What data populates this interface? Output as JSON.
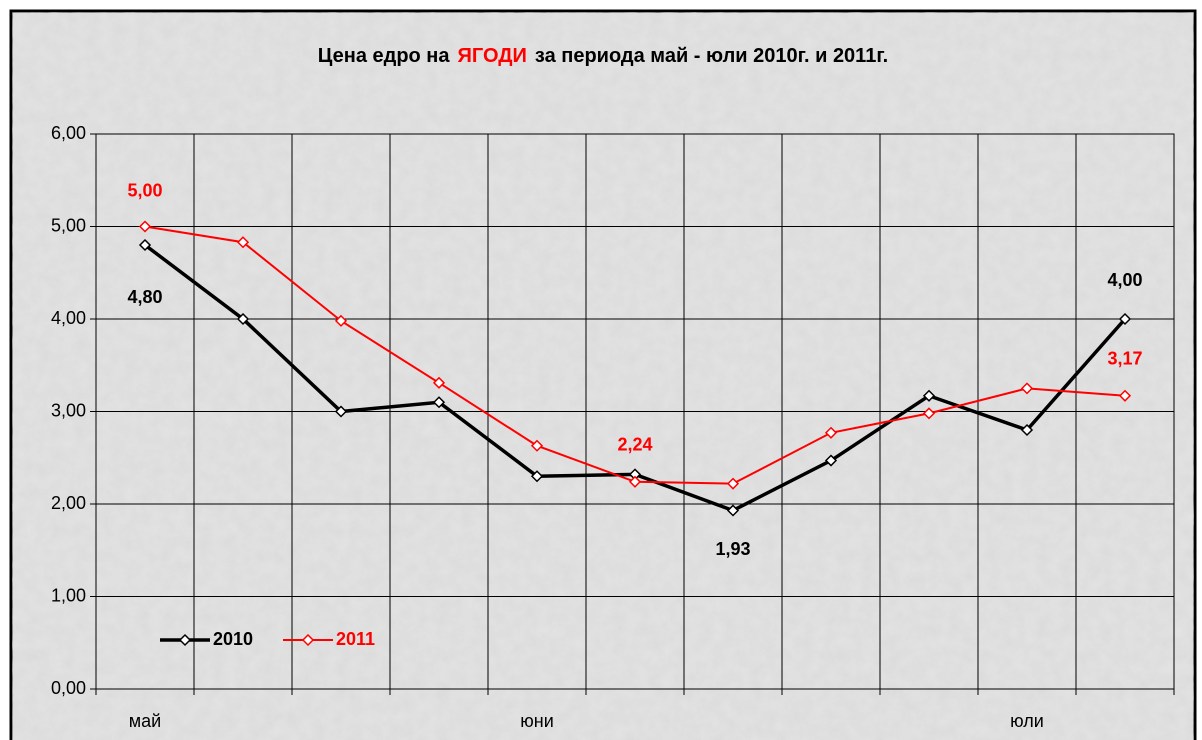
{
  "chart_data": {
    "type": "line",
    "title_parts": [
      "Цена едро на",
      "ЯГОДИ",
      "за периода май - юли 2010г. и 2011г."
    ],
    "title_colors": [
      "#000000",
      "#ff0000",
      "#000000"
    ],
    "categories": [
      "май",
      null,
      null,
      null,
      "юни",
      null,
      null,
      null,
      null,
      "юли",
      null
    ],
    "series": [
      {
        "name": "2010",
        "color": "#000000",
        "values": [
          4.8,
          4.0,
          3.0,
          3.1,
          2.3,
          2.32,
          1.93,
          2.47,
          3.17,
          2.8,
          4.0
        ],
        "value_labels": [
          "4,80",
          null,
          null,
          null,
          null,
          null,
          "1,93",
          null,
          null,
          null,
          "4,00"
        ]
      },
      {
        "name": "2011",
        "color": "#ff0000",
        "values": [
          5.0,
          4.83,
          3.98,
          3.31,
          2.63,
          2.24,
          2.22,
          2.77,
          2.98,
          3.25,
          3.17
        ],
        "value_labels": [
          "5,00",
          null,
          null,
          null,
          null,
          "2,24",
          null,
          null,
          null,
          null,
          "3,17"
        ]
      }
    ],
    "ylim": [
      0,
      6
    ],
    "yticks": [
      {
        "value": 0,
        "label": "0,00"
      },
      {
        "value": 1,
        "label": "1,00"
      },
      {
        "value": 2,
        "label": "2,00"
      },
      {
        "value": 3,
        "label": "3,00"
      },
      {
        "value": 4,
        "label": "4,00"
      },
      {
        "value": 5,
        "label": "5,00"
      },
      {
        "value": 6,
        "label": "6,00"
      }
    ],
    "grid": true,
    "legend": "lower left"
  }
}
